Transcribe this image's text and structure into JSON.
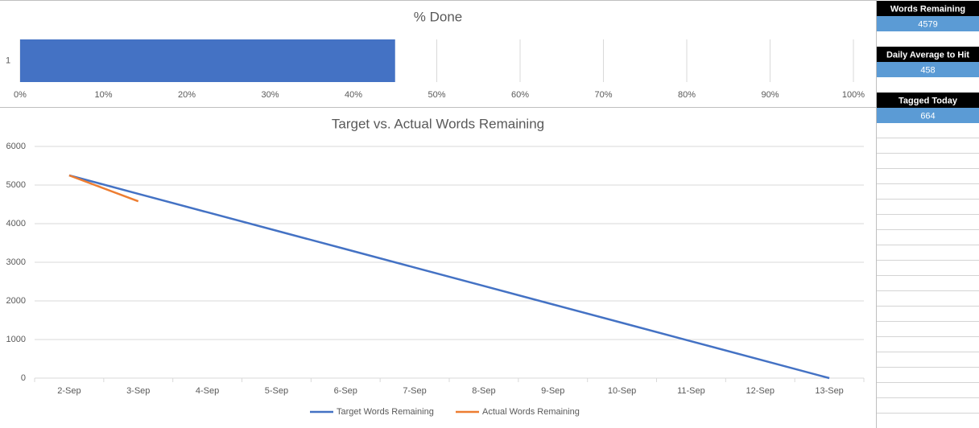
{
  "chart_data": [
    {
      "type": "hbar",
      "title": "% Done",
      "categories": [
        "1"
      ],
      "values": [
        45
      ],
      "color": "#4472c4",
      "xlim": [
        0,
        100
      ],
      "xticks": [
        {
          "value": 0,
          "label": "0%"
        },
        {
          "value": 10,
          "label": "10%"
        },
        {
          "value": 20,
          "label": "20%"
        },
        {
          "value": 30,
          "label": "30%"
        },
        {
          "value": 40,
          "label": "40%"
        },
        {
          "value": 50,
          "label": "50%"
        },
        {
          "value": 60,
          "label": "60%"
        },
        {
          "value": 70,
          "label": "70%"
        },
        {
          "value": 80,
          "label": "80%"
        },
        {
          "value": 90,
          "label": "90%"
        },
        {
          "value": 100,
          "label": "100%"
        }
      ],
      "grid": true
    },
    {
      "type": "line",
      "title": "Target vs. Actual Words Remaining",
      "categories": [
        "2-Sep",
        "3-Sep",
        "4-Sep",
        "5-Sep",
        "6-Sep",
        "7-Sep",
        "8-Sep",
        "9-Sep",
        "10-Sep",
        "11-Sep",
        "12-Sep",
        "13-Sep"
      ],
      "series": [
        {
          "name": "Target Words Remaining",
          "color": "#4472c4",
          "values": [
            5250,
            4773,
            4295,
            3818,
            3341,
            2864,
            2386,
            1909,
            1432,
            955,
            477,
            0
          ]
        },
        {
          "name": "Actual Words Remaining",
          "color": "#ed7d31",
          "values": [
            5250,
            4579,
            null,
            null,
            null,
            null,
            null,
            null,
            null,
            null,
            null,
            null
          ]
        }
      ],
      "ylim": [
        0,
        6000
      ],
      "yticks": [
        0,
        1000,
        2000,
        3000,
        4000,
        5000,
        6000
      ],
      "grid": true,
      "legend": "bottom"
    }
  ],
  "panel": [
    {
      "label": "Words Remaining",
      "value": "4579"
    },
    {
      "label": "Daily Average to Hit",
      "value": "458"
    },
    {
      "label": "Tagged Today",
      "value": "664"
    }
  ]
}
